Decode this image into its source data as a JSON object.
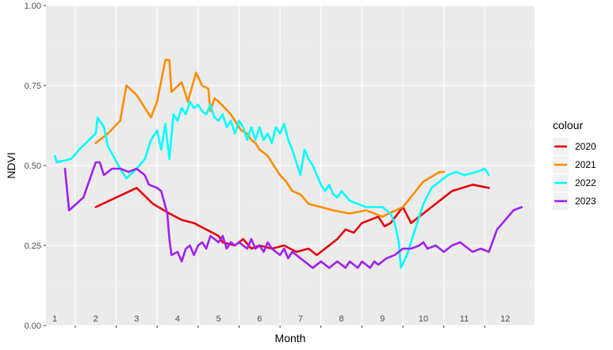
{
  "chart_data": {
    "type": "line",
    "xlabel": "Month",
    "ylabel": "NDVI",
    "xlim": [
      1,
      12.5
    ],
    "ylim": [
      0,
      1
    ],
    "x_tick_labels": [
      "1",
      "2",
      "3",
      "4",
      "5",
      "6",
      "7",
      "8",
      "9",
      "10",
      "11",
      "12"
    ],
    "y_ticks": [
      0,
      0.25,
      0.5,
      0.75,
      1
    ],
    "y_tick_labels": [
      "0.00",
      "0.25",
      "0.50",
      "0.75",
      "1.00"
    ],
    "grid": true,
    "legend": {
      "title": "colour",
      "placement": "right"
    },
    "series": [
      {
        "name": "2020",
        "color": "#e8000b",
        "points": [
          [
            2,
            0.37
          ],
          [
            3,
            0.43
          ],
          [
            3.4,
            0.38
          ],
          [
            3.8,
            0.35
          ],
          [
            4.1,
            0.33
          ],
          [
            4.4,
            0.32
          ],
          [
            4.7,
            0.3
          ],
          [
            5,
            0.28
          ],
          [
            5.1,
            0.26
          ],
          [
            5.4,
            0.25
          ],
          [
            5.6,
            0.27
          ],
          [
            5.8,
            0.24
          ],
          [
            6,
            0.25
          ],
          [
            6.3,
            0.24
          ],
          [
            6.6,
            0.25
          ],
          [
            6.9,
            0.23
          ],
          [
            7.2,
            0.24
          ],
          [
            7.4,
            0.22
          ],
          [
            7.6,
            0.24
          ],
          [
            7.9,
            0.27
          ],
          [
            8.1,
            0.3
          ],
          [
            8.3,
            0.29
          ],
          [
            8.5,
            0.32
          ],
          [
            8.7,
            0.33
          ],
          [
            8.9,
            0.34
          ],
          [
            9.05,
            0.31
          ],
          [
            9.2,
            0.32
          ],
          [
            9.5,
            0.37
          ],
          [
            9.7,
            0.32
          ],
          [
            10.2,
            0.37
          ],
          [
            10.7,
            0.42
          ],
          [
            11.2,
            0.44
          ],
          [
            11.6,
            0.43
          ]
        ]
      },
      {
        "name": "2021",
        "color": "#ff8c00",
        "points": [
          [
            2,
            0.57
          ],
          [
            2.3,
            0.6
          ],
          [
            2.6,
            0.64
          ],
          [
            2.75,
            0.75
          ],
          [
            3,
            0.72
          ],
          [
            3.15,
            0.69
          ],
          [
            3.35,
            0.65
          ],
          [
            3.5,
            0.7
          ],
          [
            3.7,
            0.83
          ],
          [
            3.8,
            0.83
          ],
          [
            3.85,
            0.73
          ],
          [
            4.1,
            0.76
          ],
          [
            4.25,
            0.7
          ],
          [
            4.45,
            0.79
          ],
          [
            4.6,
            0.75
          ],
          [
            4.75,
            0.74
          ],
          [
            4.8,
            0.67
          ],
          [
            4.9,
            0.71
          ],
          [
            5,
            0.7
          ],
          [
            5.15,
            0.68
          ],
          [
            5.3,
            0.66
          ],
          [
            5.45,
            0.63
          ],
          [
            5.55,
            0.61
          ],
          [
            5.7,
            0.6
          ],
          [
            5.8,
            0.58
          ],
          [
            5.9,
            0.57
          ],
          [
            6,
            0.55
          ],
          [
            6.2,
            0.53
          ],
          [
            6.35,
            0.5
          ],
          [
            6.5,
            0.47
          ],
          [
            6.65,
            0.45
          ],
          [
            6.8,
            0.42
          ],
          [
            7,
            0.41
          ],
          [
            7.2,
            0.38
          ],
          [
            7.5,
            0.37
          ],
          [
            7.8,
            0.36
          ],
          [
            8.2,
            0.35
          ],
          [
            8.6,
            0.36
          ],
          [
            9,
            0.34
          ],
          [
            9.5,
            0.37
          ],
          [
            10,
            0.45
          ],
          [
            10.4,
            0.48
          ],
          [
            10.5,
            0.48
          ]
        ]
      },
      {
        "name": "2022",
        "color": "#00ffff",
        "points": [
          [
            1,
            0.53
          ],
          [
            1.05,
            0.51
          ],
          [
            1.4,
            0.52
          ],
          [
            1.6,
            0.55
          ],
          [
            2,
            0.6
          ],
          [
            2.05,
            0.65
          ],
          [
            2.2,
            0.62
          ],
          [
            2.3,
            0.56
          ],
          [
            2.6,
            0.49
          ],
          [
            2.75,
            0.46
          ],
          [
            3,
            0.49
          ],
          [
            3.2,
            0.52
          ],
          [
            3.35,
            0.58
          ],
          [
            3.5,
            0.61
          ],
          [
            3.6,
            0.55
          ],
          [
            3.7,
            0.63
          ],
          [
            3.8,
            0.52
          ],
          [
            3.9,
            0.66
          ],
          [
            4,
            0.64
          ],
          [
            4.1,
            0.68
          ],
          [
            4.2,
            0.66
          ],
          [
            4.3,
            0.7
          ],
          [
            4.4,
            0.68
          ],
          [
            4.5,
            0.69
          ],
          [
            4.6,
            0.67
          ],
          [
            4.7,
            0.66
          ],
          [
            4.8,
            0.69
          ],
          [
            4.9,
            0.65
          ],
          [
            5,
            0.64
          ],
          [
            5.1,
            0.66
          ],
          [
            5.2,
            0.62
          ],
          [
            5.3,
            0.64
          ],
          [
            5.4,
            0.6
          ],
          [
            5.5,
            0.64
          ],
          [
            5.6,
            0.62
          ],
          [
            5.7,
            0.58
          ],
          [
            5.8,
            0.62
          ],
          [
            5.9,
            0.58
          ],
          [
            6,
            0.62
          ],
          [
            6.1,
            0.58
          ],
          [
            6.2,
            0.6
          ],
          [
            6.3,
            0.57
          ],
          [
            6.4,
            0.62
          ],
          [
            6.5,
            0.6
          ],
          [
            6.6,
            0.63
          ],
          [
            6.7,
            0.58
          ],
          [
            6.8,
            0.55
          ],
          [
            6.9,
            0.51
          ],
          [
            7,
            0.47
          ],
          [
            7.1,
            0.55
          ],
          [
            7.2,
            0.52
          ],
          [
            7.3,
            0.5
          ],
          [
            7.4,
            0.47
          ],
          [
            7.5,
            0.44
          ],
          [
            7.6,
            0.42
          ],
          [
            7.7,
            0.44
          ],
          [
            7.8,
            0.41
          ],
          [
            7.9,
            0.4
          ],
          [
            8,
            0.42
          ],
          [
            8.2,
            0.39
          ],
          [
            8.4,
            0.38
          ],
          [
            8.6,
            0.37
          ],
          [
            9,
            0.37
          ],
          [
            9.2,
            0.35
          ],
          [
            9.3,
            0.32
          ],
          [
            9.4,
            0.26
          ],
          [
            9.45,
            0.18
          ],
          [
            9.6,
            0.22
          ],
          [
            9.8,
            0.3
          ],
          [
            10,
            0.38
          ],
          [
            10.2,
            0.43
          ],
          [
            10.4,
            0.45
          ],
          [
            10.6,
            0.47
          ],
          [
            10.8,
            0.48
          ],
          [
            11,
            0.47
          ],
          [
            11.3,
            0.48
          ],
          [
            11.5,
            0.49
          ],
          [
            11.6,
            0.47
          ]
        ]
      },
      {
        "name": "2023",
        "color": "#a020f0",
        "points": [
          [
            1.25,
            0.49
          ],
          [
            1.35,
            0.36
          ],
          [
            1.7,
            0.4
          ],
          [
            2,
            0.51
          ],
          [
            2.1,
            0.51
          ],
          [
            2.2,
            0.47
          ],
          [
            2.4,
            0.49
          ],
          [
            2.6,
            0.49
          ],
          [
            2.8,
            0.48
          ],
          [
            3,
            0.49
          ],
          [
            3.2,
            0.47
          ],
          [
            3.3,
            0.44
          ],
          [
            3.5,
            0.43
          ],
          [
            3.6,
            0.42
          ],
          [
            3.75,
            0.35
          ],
          [
            3.8,
            0.27
          ],
          [
            3.85,
            0.22
          ],
          [
            4,
            0.23
          ],
          [
            4.1,
            0.2
          ],
          [
            4.2,
            0.24
          ],
          [
            4.3,
            0.25
          ],
          [
            4.4,
            0.22
          ],
          [
            4.5,
            0.25
          ],
          [
            4.6,
            0.26
          ],
          [
            4.7,
            0.24
          ],
          [
            4.8,
            0.28
          ],
          [
            4.9,
            0.27
          ],
          [
            5,
            0.26
          ],
          [
            5.1,
            0.28
          ],
          [
            5.2,
            0.24
          ],
          [
            5.3,
            0.26
          ],
          [
            5.4,
            0.25
          ],
          [
            5.5,
            0.26
          ],
          [
            5.6,
            0.25
          ],
          [
            5.7,
            0.24
          ],
          [
            5.8,
            0.27
          ],
          [
            5.9,
            0.24
          ],
          [
            6,
            0.25
          ],
          [
            6.1,
            0.23
          ],
          [
            6.2,
            0.26
          ],
          [
            6.3,
            0.24
          ],
          [
            6.4,
            0.23
          ],
          [
            6.5,
            0.22
          ],
          [
            6.6,
            0.24
          ],
          [
            6.7,
            0.21
          ],
          [
            6.8,
            0.23
          ],
          [
            6.9,
            0.22
          ],
          [
            7,
            0.21
          ],
          [
            7.1,
            0.2
          ],
          [
            7.2,
            0.19
          ],
          [
            7.3,
            0.18
          ],
          [
            7.5,
            0.2
          ],
          [
            7.6,
            0.19
          ],
          [
            7.7,
            0.18
          ],
          [
            7.8,
            0.19
          ],
          [
            7.9,
            0.2
          ],
          [
            8,
            0.19
          ],
          [
            8.1,
            0.18
          ],
          [
            8.2,
            0.2
          ],
          [
            8.3,
            0.19
          ],
          [
            8.4,
            0.18
          ],
          [
            8.5,
            0.2
          ],
          [
            8.6,
            0.19
          ],
          [
            8.7,
            0.18
          ],
          [
            8.8,
            0.2
          ],
          [
            8.9,
            0.19
          ],
          [
            9,
            0.2
          ],
          [
            9.1,
            0.21
          ],
          [
            9.3,
            0.22
          ],
          [
            9.5,
            0.24
          ],
          [
            9.7,
            0.24
          ],
          [
            9.9,
            0.25
          ],
          [
            10,
            0.26
          ],
          [
            10.1,
            0.24
          ],
          [
            10.3,
            0.25
          ],
          [
            10.5,
            0.23
          ],
          [
            10.7,
            0.25
          ],
          [
            10.9,
            0.26
          ],
          [
            11,
            0.25
          ],
          [
            11.2,
            0.23
          ],
          [
            11.4,
            0.24
          ],
          [
            11.6,
            0.23
          ],
          [
            11.8,
            0.3
          ],
          [
            12,
            0.33
          ],
          [
            12.2,
            0.36
          ],
          [
            12.4,
            0.37
          ]
        ]
      }
    ]
  }
}
